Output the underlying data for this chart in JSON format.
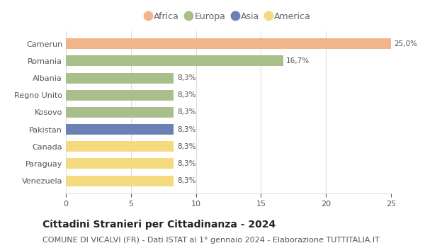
{
  "categories": [
    "Venezuela",
    "Paraguay",
    "Canada",
    "Pakistan",
    "Kosovo",
    "Regno Unito",
    "Albania",
    "Romania",
    "Camerun"
  ],
  "values": [
    8.3,
    8.3,
    8.3,
    8.3,
    8.3,
    8.3,
    8.3,
    16.7,
    25.0
  ],
  "bar_colors": [
    "#f5d97e",
    "#f5d97e",
    "#f5d97e",
    "#6b80b5",
    "#a8bf8a",
    "#a8bf8a",
    "#a8bf8a",
    "#a8bf8a",
    "#f2b48a"
  ],
  "labels": [
    "8,3%",
    "8,3%",
    "8,3%",
    "8,3%",
    "8,3%",
    "8,3%",
    "8,3%",
    "16,7%",
    "25,0%"
  ],
  "legend_entries": [
    "Africa",
    "Europa",
    "Asia",
    "America"
  ],
  "legend_colors": [
    "#f2b48a",
    "#a8bf8a",
    "#6b80b5",
    "#f5d97e"
  ],
  "xlim": [
    0,
    25
  ],
  "xticks": [
    0,
    5,
    10,
    15,
    20,
    25
  ],
  "title": "Cittadini Stranieri per Cittadinanza - 2024",
  "subtitle": "COMUNE DI VICALVI (FR) - Dati ISTAT al 1° gennaio 2024 - Elaborazione TUTTITALIA.IT",
  "title_fontsize": 10,
  "subtitle_fontsize": 8,
  "label_fontsize": 7.5,
  "tick_fontsize": 8,
  "legend_fontsize": 9,
  "bg_color": "#ffffff",
  "bar_height": 0.62,
  "grid_color": "#dddddd"
}
